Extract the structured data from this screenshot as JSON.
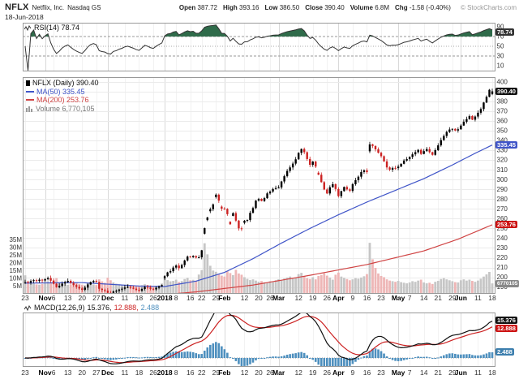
{
  "header": {
    "symbol": "NFLX",
    "company": "Netflix, Inc.",
    "exchange": "Nasdaq GS",
    "date": "18-Jun-2018",
    "quote": {
      "open_label": "Open",
      "open": "387.72",
      "high_label": "High",
      "high": "393.16",
      "low_label": "Low",
      "low": "386.50",
      "close_label": "Close",
      "close": "390.40",
      "volume_label": "Volume",
      "volume": "6.8M",
      "chg_label": "Chg",
      "chg": "-1.58 (-0.40%)"
    },
    "copyright": "© StockCharts.com"
  },
  "rsi_panel": {
    "label": "RSI(14) 78.74",
    "badge": "78.74",
    "ticks": [
      90,
      70,
      50,
      30,
      10
    ]
  },
  "price_panel": {
    "legend": [
      {
        "label": "NFLX (Daily) 390.40"
      },
      {
        "label": "MA(50) 335.45"
      },
      {
        "label": "MA(200) 253.76"
      },
      {
        "label": "Volume 6,770,105"
      }
    ],
    "badges": {
      "close": "390.40",
      "ma50": "335.45",
      "ma200": "253.76",
      "volume": "6770105"
    },
    "price_ticks": [
      400,
      390,
      380,
      370,
      360,
      350,
      340,
      330,
      320,
      310,
      300,
      290,
      280,
      270,
      260,
      250,
      240,
      230,
      220,
      210,
      200,
      190
    ],
    "volume_ticks": [
      {
        "t": "35M",
        "v": 35
      },
      {
        "t": "30M",
        "v": 30
      },
      {
        "t": "25M",
        "v": 25
      },
      {
        "t": "20M",
        "v": 20
      },
      {
        "t": "15M",
        "v": 15
      },
      {
        "t": "10M",
        "v": 10
      },
      {
        "t": "5M",
        "v": 5
      }
    ]
  },
  "macd_panel": {
    "name": "MACD(12,26,9)",
    "v1": "15.376,",
    "v2": "12.888,",
    "v3": "2.488",
    "badges": {
      "macd": "15.376",
      "signal": "12.888",
      "hist": "2.488"
    }
  },
  "x_axis": {
    "ticks": [
      {
        "i": 0,
        "t": "23"
      },
      {
        "i": 7,
        "t": "Nov",
        "b": 1
      },
      {
        "i": 10,
        "t": "6"
      },
      {
        "i": 15,
        "t": "13"
      },
      {
        "i": 20,
        "t": "20"
      },
      {
        "i": 25,
        "t": "27"
      },
      {
        "i": 29,
        "t": "Dec",
        "b": 1
      },
      {
        "i": 35,
        "t": "11"
      },
      {
        "i": 40,
        "t": "18"
      },
      {
        "i": 45,
        "t": "26"
      },
      {
        "i": 49,
        "t": "2018",
        "b": 1
      },
      {
        "i": 53,
        "t": "8"
      },
      {
        "i": 58,
        "t": "16"
      },
      {
        "i": 62,
        "t": "22"
      },
      {
        "i": 67,
        "t": "29"
      },
      {
        "i": 70,
        "t": "Feb",
        "b": 1
      },
      {
        "i": 77,
        "t": "12"
      },
      {
        "i": 82,
        "t": "20"
      },
      {
        "i": 86,
        "t": "26"
      },
      {
        "i": 89,
        "t": "Mar",
        "b": 1
      },
      {
        "i": 96,
        "t": "12"
      },
      {
        "i": 101,
        "t": "19"
      },
      {
        "i": 106,
        "t": "26"
      },
      {
        "i": 110,
        "t": "Apr",
        "b": 1
      },
      {
        "i": 115,
        "t": "9"
      },
      {
        "i": 120,
        "t": "16"
      },
      {
        "i": 125,
        "t": "23"
      },
      {
        "i": 131,
        "t": "May",
        "b": 1
      },
      {
        "i": 135,
        "t": "7"
      },
      {
        "i": 140,
        "t": "14"
      },
      {
        "i": 145,
        "t": "21"
      },
      {
        "i": 150,
        "t": "29"
      },
      {
        "i": 153,
        "t": "Jun",
        "b": 1
      },
      {
        "i": 159,
        "t": "11"
      },
      {
        "i": 164,
        "t": "18"
      }
    ]
  },
  "colors": {
    "up": "#000000",
    "down": "#cc2222",
    "vol_up": "#c6c6c6",
    "vol_down": "#eeb6b6",
    "ma50": "#4055c8",
    "ma200": "#d04545",
    "rsi_line": "#333333",
    "rsi_fill": "#2f6b4a",
    "macd_line": "#111111",
    "macd_signal": "#cc2222",
    "macd_hist": "#4d8fbe",
    "badge_close": "#111111",
    "badge_ma50": "#4055c8",
    "badge_ma200": "#cc1111",
    "badge_vol": "#888888",
    "badge_rsi": "#333333",
    "badge_macd1": "#111111",
    "badge_macd2": "#cc1111",
    "badge_macd3": "#3d7fae",
    "legend_price": "#111111",
    "legend_volume": "#777777",
    "grid": "#ebebeb",
    "month_grid": "#d9d9d9",
    "week_grid": "#f2f2f2",
    "axis_text": "#333333",
    "border": "#999999"
  },
  "chart_data": {
    "type": "candlestick",
    "title": "NFLX (Daily)",
    "price_axis": {
      "min": 190,
      "max": 400,
      "tick_step": 10
    },
    "volume_axis_millions": {
      "min": 0,
      "max": 35,
      "tick_step": 5
    },
    "rsi_axis": {
      "overbought": 70,
      "mid": 50,
      "oversold": 30
    },
    "macd_params": [
      12,
      26,
      9
    ],
    "last_candle": [
      387.72,
      393.16,
      386.5,
      390.4
    ],
    "closes": [
      195.0,
      194.5,
      196.1,
      197.0,
      196.2,
      197.5,
      196.8,
      198.0,
      199.2,
      196.5,
      193.3,
      189.8,
      191.2,
      193.5,
      195.1,
      196.3,
      194.2,
      192.0,
      190.1,
      188.5,
      187.2,
      189.4,
      192.6,
      195.0,
      196.2,
      195.1,
      188.2,
      187.0,
      186.3,
      184.0,
      183.2,
      185.5,
      186.1,
      187.4,
      188.2,
      189.5,
      190.1,
      189.2,
      188.3,
      187.0,
      186.2,
      188.0,
      190.1,
      189.4,
      188.2,
      187.6,
      189.2,
      190.6,
      191.9,
      201.1,
      205.0,
      206.2,
      209.9,
      212.0,
      209.3,
      212.5,
      217.2,
      221.2,
      220.5,
      221.8,
      220.1,
      220.4,
      227.6,
      250.3,
      261.3,
      269.7,
      274.6,
      284.6,
      278.5,
      270.3,
      270.0,
      264.6,
      254.3,
      265.7,
      258.0,
      250.1,
      249.3,
      257.9,
      258.7,
      266.0,
      270.9,
      278.5,
      280.3,
      278.1,
      281.0,
      285.9,
      287.8,
      290.4,
      291.4,
      292.0,
      298.1,
      303.5,
      308.9,
      312.5,
      316.4,
      320.8,
      327.4,
      331.4,
      328.1,
      321.1,
      315.2,
      318.5,
      313.4,
      305.0,
      297.4,
      289.9,
      285.8,
      292.2,
      295.3,
      290.4,
      283.1,
      288.2,
      292.5,
      290.0,
      288.5,
      295.3,
      299.4,
      303.0,
      307.8,
      309.5,
      307.7,
      336.1,
      334.5,
      331.0,
      327.5,
      324.0,
      318.7,
      312.5,
      310.2,
      312.0,
      311.8,
      313.3,
      316.2,
      319.5,
      321.0,
      323.2,
      325.9,
      328.1,
      330.5,
      326.3,
      329.2,
      331.3,
      328.1,
      325.4,
      330.2,
      335.1,
      340.5,
      344.7,
      348.8,
      351.3,
      352.0,
      350.3,
      351.6,
      355.4,
      359.3,
      362.0,
      365.1,
      361.4,
      364.6,
      368.5,
      372.3,
      379.0,
      384.8,
      392.0,
      390.4
    ],
    "volumes_millions": [
      12.0,
      8.5,
      7.2,
      6.8,
      6.1,
      5.9,
      6.3,
      9.1,
      8.2,
      7.5,
      8.8,
      10.2,
      7.1,
      6.5,
      6.2,
      5.8,
      6.1,
      6.6,
      7.0,
      6.4,
      5.9,
      5.5,
      6.8,
      7.3,
      6.1,
      5.7,
      9.4,
      8.1,
      7.2,
      10.5,
      8.8,
      7.4,
      6.6,
      6.2,
      5.8,
      6.0,
      6.4,
      5.7,
      5.3,
      5.1,
      4.9,
      5.6,
      6.2,
      5.8,
      5.4,
      4.8,
      5.2,
      5.6,
      6.7,
      9.8,
      8.9,
      8.1,
      8.4,
      9.2,
      7.7,
      8.3,
      9.6,
      10.4,
      8.8,
      9.1,
      8.5,
      12.5,
      15.4,
      32.8,
      25.6,
      18.2,
      15.1,
      14.3,
      12.6,
      11.8,
      11.2,
      14.8,
      13.5,
      12.1,
      15.6,
      13.2,
      12.4,
      10.8,
      9.7,
      8.9,
      9.4,
      8.6,
      7.9,
      8.3,
      7.5,
      7.1,
      8.2,
      7.6,
      8.8,
      9.5,
      8.7,
      9.9,
      10.6,
      11.2,
      9.8,
      10.4,
      12.8,
      13.6,
      11.4,
      10.2,
      9.6,
      10.8,
      9.4,
      11.6,
      12.2,
      13.4,
      11.8,
      10.6,
      9.2,
      12.4,
      13.8,
      11.2,
      10.4,
      9.6,
      8.8,
      9.4,
      10.2,
      9.8,
      10.6,
      11.4,
      12.8,
      33.1,
      22.4,
      16.8,
      13.2,
      11.6,
      10.8,
      9.4,
      8.6,
      8.2,
      7.8,
      8.4,
      7.6,
      7.2,
      6.8,
      7.4,
      8.2,
      7.8,
      8.6,
      9.2,
      7.4,
      6.8,
      7.2,
      6.4,
      7.8,
      8.4,
      9.6,
      10.2,
      9.4,
      8.8,
      8.2,
      7.6,
      7.4,
      8.8,
      9.4,
      8.6,
      9.2,
      8.4,
      7.8,
      8.6,
      9.8,
      11.2,
      12.6,
      14.2,
      6.77
    ],
    "ma50_anchors": [
      [
        0,
        194
      ],
      [
        20,
        194.5
      ],
      [
        40,
        191
      ],
      [
        49,
        190.5
      ],
      [
        60,
        196
      ],
      [
        70,
        205
      ],
      [
        80,
        219
      ],
      [
        90,
        235
      ],
      [
        100,
        250
      ],
      [
        110,
        264
      ],
      [
        120,
        277
      ],
      [
        130,
        289
      ],
      [
        140,
        301
      ],
      [
        150,
        315
      ],
      [
        158,
        327
      ],
      [
        164,
        335.45
      ]
    ],
    "ma200_anchors": [
      [
        0,
        172
      ],
      [
        20,
        176
      ],
      [
        40,
        180
      ],
      [
        60,
        185
      ],
      [
        80,
        192
      ],
      [
        100,
        202
      ],
      [
        120,
        213
      ],
      [
        140,
        227
      ],
      [
        152,
        239
      ],
      [
        164,
        253.76
      ]
    ]
  }
}
